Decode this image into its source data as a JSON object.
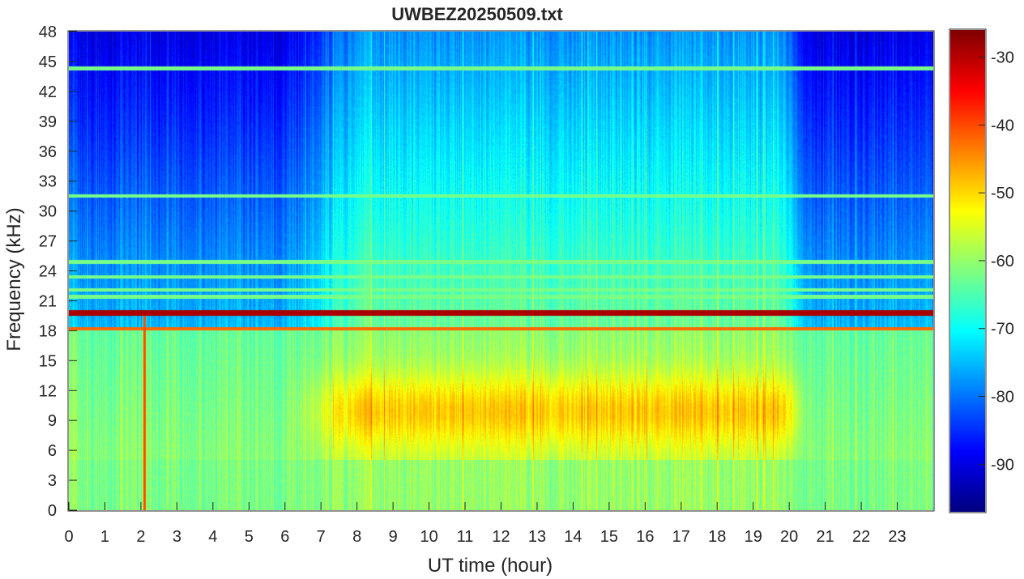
{
  "chart_data": {
    "type": "heatmap",
    "title": "UWBEZ20250509.txt",
    "xlabel": "UT time (hour)",
    "ylabel": "Frequency (kHz)",
    "xlim": [
      0,
      24
    ],
    "ylim": [
      0,
      48
    ],
    "x_ticks": [
      "0",
      "1",
      "2",
      "3",
      "4",
      "5",
      "6",
      "7",
      "8",
      "9",
      "10",
      "11",
      "12",
      "13",
      "14",
      "15",
      "16",
      "17",
      "18",
      "19",
      "20",
      "21",
      "22",
      "23"
    ],
    "y_ticks": [
      "0",
      "3",
      "6",
      "9",
      "12",
      "15",
      "18",
      "21",
      "24",
      "27",
      "30",
      "33",
      "36",
      "39",
      "42",
      "45",
      "48"
    ],
    "colorbar": {
      "range": [
        -97,
        -26
      ],
      "ticks": [
        "-90",
        "-80",
        "-70",
        "-60",
        "-50",
        "-40",
        "-30"
      ],
      "colormap": "jet"
    },
    "features": {
      "active_hours": [
        7,
        20.5
      ],
      "peak_region_khz": [
        6,
        14
      ],
      "peak_level": -46,
      "strong_line_khz": 19.8,
      "strong_line_level": -29,
      "secondary_line_khz": 18.2,
      "secondary_line_level": -42,
      "transmitter_lines_khz": [
        21.4,
        22.1,
        23.4,
        24.9,
        44.3,
        31.5
      ],
      "impulse_hour": 2.1
    }
  }
}
